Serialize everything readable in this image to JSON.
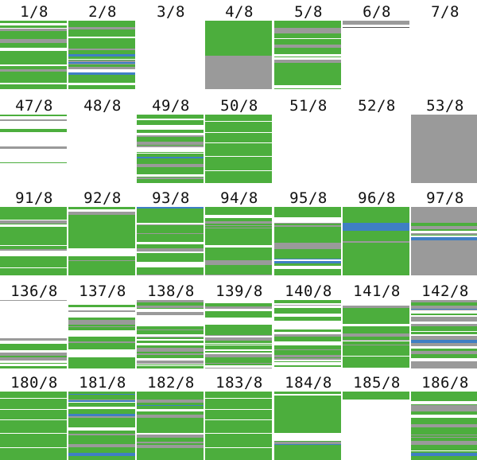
{
  "colors": {
    "green": "#4cae3d",
    "gray": "#9a9a9a",
    "blue": "#3f7fc4",
    "white": "#ffffff",
    "dark": "#555555",
    "red": "#c0504d"
  },
  "thumbnails": [
    [
      {
        "label": "1/8",
        "pattern": "striped",
        "fill": "dense"
      },
      {
        "label": "2/8",
        "pattern": "striped",
        "fill": "dense"
      },
      {
        "label": "3/8",
        "pattern": "blank"
      },
      {
        "label": "4/8",
        "pattern": "green-gray-split"
      },
      {
        "label": "5/8",
        "pattern": "striped",
        "fill": "dense"
      },
      {
        "label": "6/8",
        "pattern": "thin-top"
      },
      {
        "label": "7/8",
        "pattern": "blank"
      }
    ],
    [
      {
        "label": "47/8",
        "pattern": "sparse-lines"
      },
      {
        "label": "48/8",
        "pattern": "blank"
      },
      {
        "label": "49/8",
        "pattern": "striped",
        "fill": "dense"
      },
      {
        "label": "50/8",
        "pattern": "mostly-green"
      },
      {
        "label": "51/8",
        "pattern": "blank"
      },
      {
        "label": "52/8",
        "pattern": "blank"
      },
      {
        "label": "53/8",
        "pattern": "solid-gray"
      }
    ],
    [
      {
        "label": "91/8",
        "pattern": "striped",
        "fill": "noisy-bottom"
      },
      {
        "label": "92/8",
        "pattern": "green-gap"
      },
      {
        "label": "93/8",
        "pattern": "striped",
        "fill": "dense"
      },
      {
        "label": "94/8",
        "pattern": "striped",
        "fill": "dense"
      },
      {
        "label": "95/8",
        "pattern": "striped",
        "fill": "dense"
      },
      {
        "label": "96/8",
        "pattern": "green-blue-band"
      },
      {
        "label": "97/8",
        "pattern": "gray-green-gray"
      }
    ],
    [
      {
        "label": "136/8",
        "pattern": "bottom-stripes"
      },
      {
        "label": "137/8",
        "pattern": "striped",
        "fill": "light"
      },
      {
        "label": "138/8",
        "pattern": "striped",
        "fill": "light"
      },
      {
        "label": "139/8",
        "pattern": "striped",
        "fill": "light"
      },
      {
        "label": "140/8",
        "pattern": "striped",
        "fill": "light"
      },
      {
        "label": "141/8",
        "pattern": "striped",
        "fill": "dense"
      },
      {
        "label": "142/8",
        "pattern": "striped",
        "fill": "light"
      }
    ],
    [
      {
        "label": "180/8",
        "pattern": "mostly-green"
      },
      {
        "label": "181/8",
        "pattern": "striped",
        "fill": "dense"
      },
      {
        "label": "182/8",
        "pattern": "striped",
        "fill": "dense"
      },
      {
        "label": "183/8",
        "pattern": "mostly-green"
      },
      {
        "label": "184/8",
        "pattern": "green-gap"
      },
      {
        "label": "185/8",
        "pattern": "thin-noise-top"
      },
      {
        "label": "186/8",
        "pattern": "striped",
        "fill": "dense"
      }
    ]
  ]
}
